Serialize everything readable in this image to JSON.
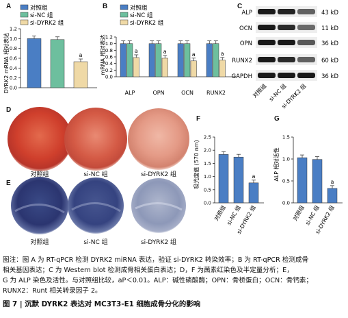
{
  "colors": {
    "control": "#4a7ec4",
    "si_nc": "#6dbf9e",
    "si_dyrk2": "#efd9a6",
    "sig": "#4a7ec4"
  },
  "panels": {
    "A": "A",
    "B": "B",
    "C": "C",
    "D": "D",
    "E": "E",
    "F": "F",
    "G": "G"
  },
  "legend": {
    "control": "对照组",
    "si_nc": "si-NC 组",
    "si_dyrk2": "si-DYRK2 组"
  },
  "sig_mark": "a",
  "chart_data": [
    {
      "panel": "A",
      "type": "bar",
      "ylabel": "DYRK2 mRNA 相对表达",
      "ylim": [
        0,
        1.2
      ],
      "yticks": [
        "0.0",
        "0.2",
        "0.4",
        "0.6",
        "0.8",
        "1.0",
        "1.2"
      ],
      "series": [
        {
          "name": "对照组",
          "values": [
            1.0
          ]
        },
        {
          "name": "si-NC 组",
          "values": [
            0.98
          ]
        },
        {
          "name": "si-DYRK2 组",
          "values": [
            0.53
          ]
        }
      ]
    },
    {
      "panel": "B",
      "type": "bar",
      "ylabel": "mRNA 相对表达",
      "ylim": [
        0,
        1.2
      ],
      "yticks": [
        "0.0",
        "0.2",
        "0.4",
        "0.6",
        "0.8",
        "1.0",
        "1.2"
      ],
      "categories": [
        "ALP",
        "OPN",
        "OCN",
        "RUNX2"
      ],
      "series": [
        {
          "name": "对照组",
          "values": [
            1.0,
            1.0,
            1.0,
            1.0
          ]
        },
        {
          "name": "si-NC 组",
          "values": [
            1.0,
            1.0,
            1.0,
            1.0
          ]
        },
        {
          "name": "si-DYRK2 组",
          "values": [
            0.58,
            0.56,
            0.48,
            0.5
          ]
        }
      ]
    },
    {
      "panel": "F",
      "type": "bar",
      "ylabel": "吸光度值 (570 nm)",
      "ylim": [
        0,
        2.5
      ],
      "yticks": [
        "0.0",
        "0.5",
        "1.0",
        "1.5",
        "2.0",
        "2.5"
      ],
      "categories": [
        "对照组",
        "si-NC 组",
        "si-DYRK2 组"
      ],
      "values": [
        1.84,
        1.74,
        0.76
      ]
    },
    {
      "panel": "G",
      "type": "bar",
      "ylabel": "ALP 相对活性",
      "ylim": [
        0,
        1.5
      ],
      "yticks": [
        "0.0",
        "0.5",
        "1.0",
        "1.5"
      ],
      "categories": [
        "对照组",
        "si-NC 组",
        "si-DYRK2 组"
      ],
      "values": [
        1.03,
        0.99,
        0.33
      ]
    }
  ],
  "western": {
    "bands": [
      {
        "name": "ALP",
        "kd": "43 kD"
      },
      {
        "name": "OCN",
        "kd": "11 kD"
      },
      {
        "name": "OPN",
        "kd": "36 kD"
      },
      {
        "name": "RUNX2",
        "kd": "60 kD"
      },
      {
        "name": "GAPDH",
        "kd": "36 kD"
      }
    ],
    "lanes": [
      "对照组",
      "si-NC 组",
      "si-DYRK2 组"
    ]
  },
  "dish_labels": {
    "D": [
      "对照组",
      "si-NC 组",
      "si-DYRK2 组"
    ],
    "E": [
      "对照组",
      "si-NC 组",
      "si-DYRK2 组"
    ]
  },
  "caption": {
    "line1": "图注：图 A 为 RT-qPCR 检测 DYRK2 miRNA 表达，验证 si-DYRK2 转染效率；B 为 RT-qPCR 检测成骨",
    "line2": "相关基因表达；C 为 Western blot 检测成骨相关蛋白表达；D，F 为茜素红染色及半定量分析；E，",
    "line3": "G 为 ALP 染色及活性。与对照组比较，aP＜0.01。ALP：碱性磷酸酶；OPN：骨桥蛋白；OCN：骨钙素；",
    "line4": "RUNX2：Runt 相关转录因子 2。",
    "title": "图 7  |  沉默 DYRK2 表达对 MC3T3-E1 细胞成骨分化的影响"
  }
}
